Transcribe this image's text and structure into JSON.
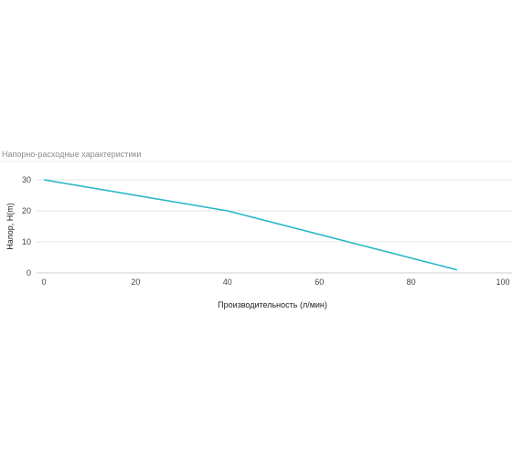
{
  "chart_data": {
    "type": "line",
    "title": "Напорно-расходные характеристики",
    "xlabel": "Производительность (л/мин)",
    "ylabel": "Напор, H(m)",
    "xlim": [
      0,
      100
    ],
    "ylim": [
      0,
      30
    ],
    "x_ticks": [
      "0",
      "20",
      "40",
      "60",
      "80",
      "100"
    ],
    "y_ticks": [
      "0",
      "10",
      "20",
      "30"
    ],
    "grid": true,
    "series": [
      {
        "x": [
          0,
          40,
          90
        ],
        "y": [
          30,
          20,
          1
        ],
        "color": "#29b6c8"
      }
    ]
  }
}
